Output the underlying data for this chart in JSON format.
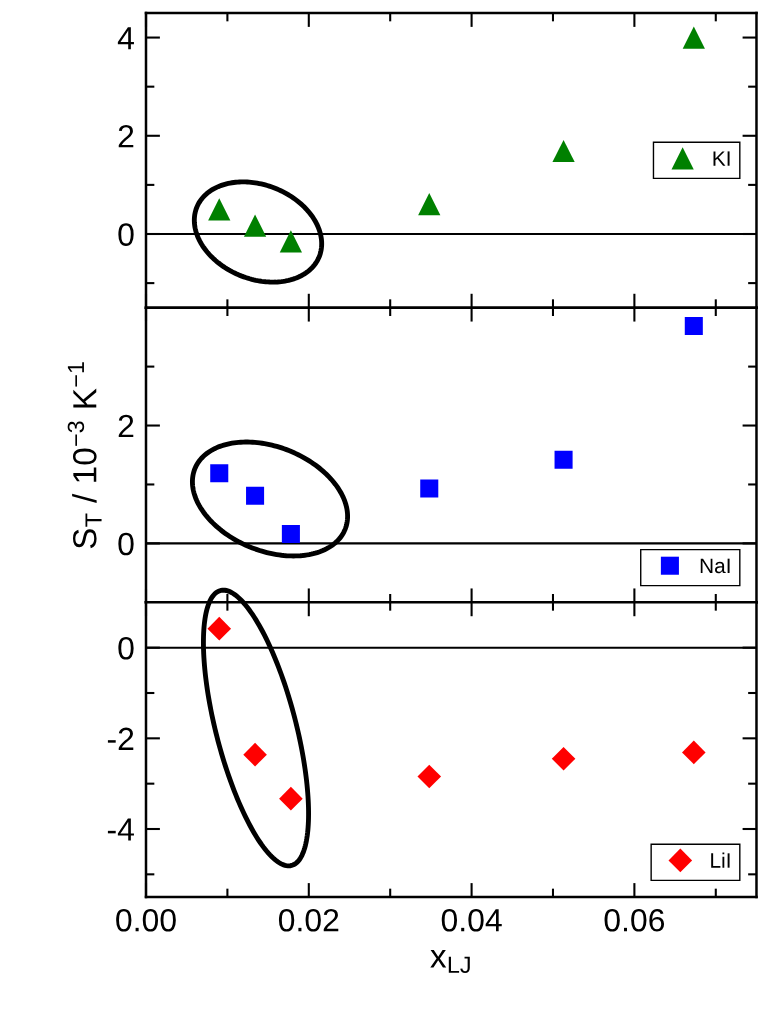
{
  "chart_data": [
    {
      "type": "scatter",
      "marker": "triangle",
      "legend": "right",
      "tick_labels": "y",
      "x": [
        0.009,
        0.0134,
        0.0178,
        0.0348,
        0.0513,
        0.0673
      ],
      "series": [
        {
          "name": "KI",
          "color": "#008000",
          "values": [
            0.5,
            0.17,
            -0.15,
            0.61,
            1.69,
            4.0
          ]
        }
      ],
      "xlim": [
        0,
        0.075
      ],
      "xticks": [
        0,
        {
          "value": 0.01,
          "label": null
        },
        0.02,
        {
          "value": 0.03,
          "label": null
        },
        0.04,
        {
          "value": 0.05,
          "label": null
        },
        0.06,
        {
          "value": 0.07,
          "label": null
        }
      ],
      "ylim": [
        -1.5,
        4.5
      ],
      "yticks": [
        {
          "value": -1,
          "label": null
        },
        0,
        {
          "value": 1,
          "label": null
        },
        2,
        {
          "value": 3,
          "label": null
        },
        4
      ],
      "ref_lines": [
        {
          "axis": "y",
          "value": 0,
          "color": "#000000"
        }
      ]
    },
    {
      "type": "scatter",
      "marker": "square",
      "legend": "bottom right",
      "tick_labels": "y",
      "ylabel": "S$_{T}$ / 10$^{−3}$ K$^{−1}$",
      "x": [
        0.009,
        0.0134,
        0.0178,
        0.0348,
        0.0513,
        0.0673
      ],
      "series": [
        {
          "name": "NaI",
          "color": "#0000ff",
          "values": [
            1.19,
            0.81,
            0.16,
            0.93,
            1.42,
            3.69
          ]
        }
      ],
      "xlim": [
        0,
        0.075
      ],
      "xticks": [
        0,
        {
          "value": 0.01,
          "label": null
        },
        0.02,
        {
          "value": 0.03,
          "label": null
        },
        0.04,
        {
          "value": 0.05,
          "label": null
        },
        0.06,
        {
          "value": 0.07,
          "label": null
        }
      ],
      "ylim": [
        -1,
        4
      ],
      "yticks": [
        0,
        {
          "value": 1,
          "label": null
        },
        2,
        {
          "value": 3,
          "label": null
        }
      ],
      "ref_lines": [
        {
          "axis": "y",
          "value": 0,
          "color": "#000000"
        }
      ]
    },
    {
      "type": "scatter",
      "marker": "diamond",
      "legend": "bottom right",
      "xlabel": "x$_{LJ}$",
      "x": [
        0.009,
        0.0134,
        0.0178,
        0.0348,
        0.0513,
        0.0673
      ],
      "series": [
        {
          "name": "LiI",
          "color": "#ff0000",
          "values": [
            0.42,
            -2.36,
            -3.33,
            -2.84,
            -2.45,
            -2.31
          ]
        }
      ],
      "xlim": [
        0,
        0.075
      ],
      "xticks": [
        {
          "value": 0,
          "label": "0.00"
        },
        {
          "value": 0.01,
          "label": null
        },
        {
          "value": 0.02,
          "label": "0.02"
        },
        {
          "value": 0.03,
          "label": null
        },
        {
          "value": 0.04,
          "label": "0.04"
        },
        {
          "value": 0.05,
          "label": null
        },
        {
          "value": 0.06,
          "label": "0.06"
        },
        {
          "value": 0.07,
          "label": null
        }
      ],
      "ylim": [
        -5.5,
        1
      ],
      "yticks": [
        {
          "value": -5,
          "label": null
        },
        -4,
        {
          "value": -3,
          "label": null
        },
        -2,
        {
          "value": -1,
          "label": null
        },
        0
      ],
      "ref_lines": [
        {
          "axis": "y",
          "value": 0,
          "color": "#000000"
        }
      ]
    }
  ]
}
